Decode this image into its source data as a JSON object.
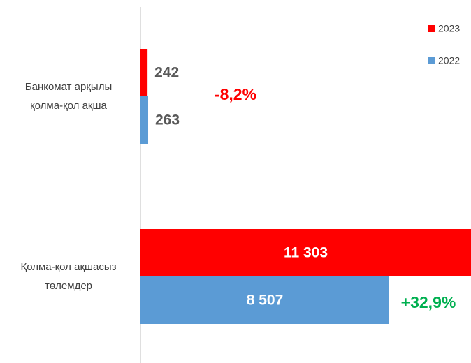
{
  "chart_data": {
    "type": "bar",
    "orientation": "horizontal",
    "categories": [
      [
        "Банкомат арқылы",
        "қолма-қол ақша"
      ],
      [
        "Қолма-қол ақшасыз",
        "төлемдер"
      ]
    ],
    "series": [
      {
        "name": "2023",
        "color": "#ff0000",
        "values": [
          242,
          11303
        ],
        "value_labels": [
          "242",
          "11 303"
        ]
      },
      {
        "name": "2022",
        "color": "#5b9bd5",
        "values": [
          263,
          8507
        ],
        "value_labels": [
          "263",
          "8 507"
        ]
      }
    ],
    "annotations": [
      {
        "text": "-8,2%",
        "color": "#ff0000"
      },
      {
        "text": "+32,9%",
        "color": "#00b050"
      }
    ],
    "legend": "top-right"
  }
}
